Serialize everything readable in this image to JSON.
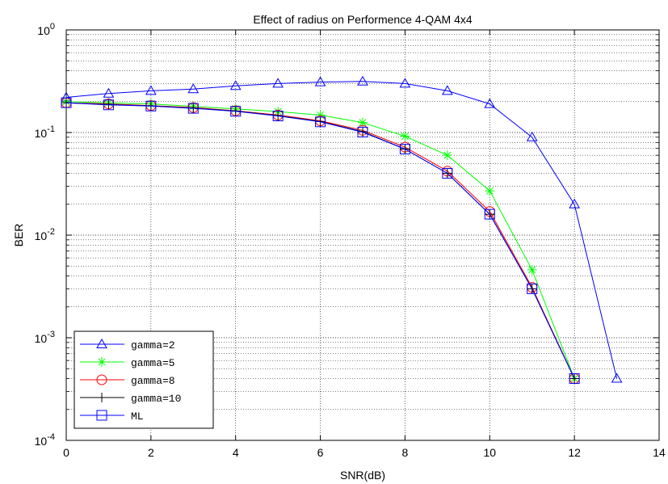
{
  "chart_data": {
    "type": "line",
    "title": "Effect of radius on Performence 4-QAM 4x4",
    "xlabel": "SNR(dB)",
    "ylabel": "BER",
    "xlim": [
      0,
      14
    ],
    "ylim": [
      0.0001,
      1
    ],
    "yscale": "log",
    "grid": true,
    "legend_position": "bottom-left",
    "x_ticks": [
      "0",
      "2",
      "4",
      "6",
      "8",
      "10",
      "12",
      "14"
    ],
    "y_tick_base": "10",
    "y_tick_exponents": [
      "-4",
      "-3",
      "-2",
      "-1",
      "0"
    ],
    "series": [
      {
        "name": "gamma=2",
        "color": "#0000ff",
        "marker": "triangle",
        "x": [
          0,
          1,
          2,
          3,
          4,
          5,
          6,
          7,
          8,
          9,
          10,
          11,
          12,
          13
        ],
        "y": [
          0.22,
          0.24,
          0.255,
          0.265,
          0.285,
          0.3,
          0.31,
          0.315,
          0.3,
          0.255,
          0.19,
          0.09,
          0.02,
          0.0004
        ]
      },
      {
        "name": "gamma=5",
        "color": "#00ff00",
        "marker": "star",
        "x": [
          0,
          1,
          2,
          3,
          4,
          5,
          6,
          7,
          8,
          9,
          10,
          11,
          12
        ],
        "y": [
          0.2,
          0.195,
          0.19,
          0.18,
          0.17,
          0.16,
          0.148,
          0.125,
          0.092,
          0.06,
          0.027,
          0.0046,
          0.0004
        ]
      },
      {
        "name": "gamma=8",
        "color": "#ff0000",
        "marker": "circle",
        "x": [
          0,
          1,
          2,
          3,
          4,
          5,
          6,
          7,
          8,
          9,
          10,
          11,
          12
        ],
        "y": [
          0.195,
          0.19,
          0.183,
          0.175,
          0.163,
          0.148,
          0.13,
          0.105,
          0.072,
          0.042,
          0.017,
          0.0031,
          0.0004
        ]
      },
      {
        "name": "gamma=10",
        "color": "#000000",
        "marker": "plus",
        "x": [
          0,
          1,
          2,
          3,
          4,
          5,
          6,
          7,
          8,
          9,
          10,
          11,
          12
        ],
        "y": [
          0.195,
          0.188,
          0.182,
          0.173,
          0.162,
          0.146,
          0.128,
          0.102,
          0.069,
          0.04,
          0.016,
          0.003,
          0.0004
        ]
      },
      {
        "name": "ML",
        "color": "#0000ff",
        "marker": "square",
        "x": [
          0,
          1,
          2,
          3,
          4,
          5,
          6,
          7,
          8,
          9,
          10,
          11,
          12
        ],
        "y": [
          0.195,
          0.186,
          0.181,
          0.172,
          0.161,
          0.145,
          0.127,
          0.101,
          0.069,
          0.04,
          0.016,
          0.003,
          0.0004
        ]
      }
    ]
  }
}
